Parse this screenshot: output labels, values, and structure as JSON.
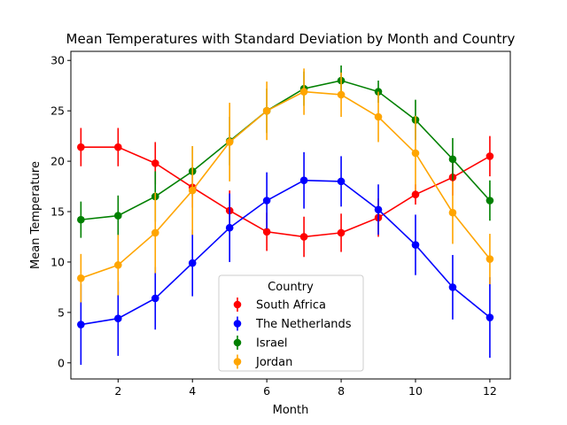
{
  "chart_data": {
    "type": "line",
    "title": "Mean Temperatures with Standard Deviation by Month and Country",
    "xlabel": "Month",
    "ylabel": "Mean Temperature",
    "xlim": [
      0.73,
      12.55
    ],
    "ylim": [
      -1.6,
      30.9
    ],
    "xticks": [
      2,
      4,
      6,
      8,
      10,
      12
    ],
    "yticks": [
      0,
      5,
      10,
      15,
      20,
      25,
      30
    ],
    "grid": false,
    "legend": {
      "title": "Country",
      "placement": "lower-center"
    },
    "x": [
      1,
      2,
      3,
      4,
      5,
      6,
      7,
      8,
      9,
      10,
      11,
      12
    ],
    "series": [
      {
        "name": "South Africa",
        "color": "#ff0000",
        "values": [
          21.4,
          21.4,
          19.8,
          17.4,
          15.1,
          13.0,
          12.5,
          12.9,
          14.4,
          16.7,
          18.4,
          20.5
        ],
        "errors": [
          1.9,
          1.9,
          2.1,
          2.0,
          2.0,
          1.9,
          2.0,
          1.9,
          1.9,
          1.0,
          1.8,
          2.0
        ]
      },
      {
        "name": "The Netherlands",
        "color": "#0000ff",
        "values": [
          3.8,
          4.4,
          6.4,
          9.9,
          13.4,
          16.1,
          18.1,
          18.0,
          15.2,
          11.7,
          7.5,
          4.5
        ],
        "errors": [
          4.0,
          3.7,
          3.1,
          3.3,
          3.4,
          2.8,
          2.8,
          2.5,
          2.5,
          3.0,
          3.2,
          4.0
        ]
      },
      {
        "name": "Israel",
        "color": "#008000",
        "values": [
          14.2,
          14.6,
          16.5,
          19.0,
          22.0,
          25.0,
          27.2,
          28.0,
          26.9,
          24.1,
          20.2,
          16.1
        ],
        "errors": [
          1.8,
          2.0,
          2.5,
          2.5,
          2.4,
          2.2,
          1.7,
          1.5,
          1.1,
          2.0,
          2.1,
          2.0
        ]
      },
      {
        "name": "Jordan",
        "color": "#ffa500",
        "values": [
          8.4,
          9.7,
          12.9,
          17.1,
          21.9,
          25.0,
          26.9,
          26.6,
          24.4,
          20.8,
          14.9,
          10.3
        ],
        "errors": [
          2.4,
          3.0,
          4.0,
          4.4,
          3.9,
          2.9,
          2.3,
          2.2,
          2.5,
          3.7,
          3.1,
          2.5
        ]
      }
    ]
  }
}
